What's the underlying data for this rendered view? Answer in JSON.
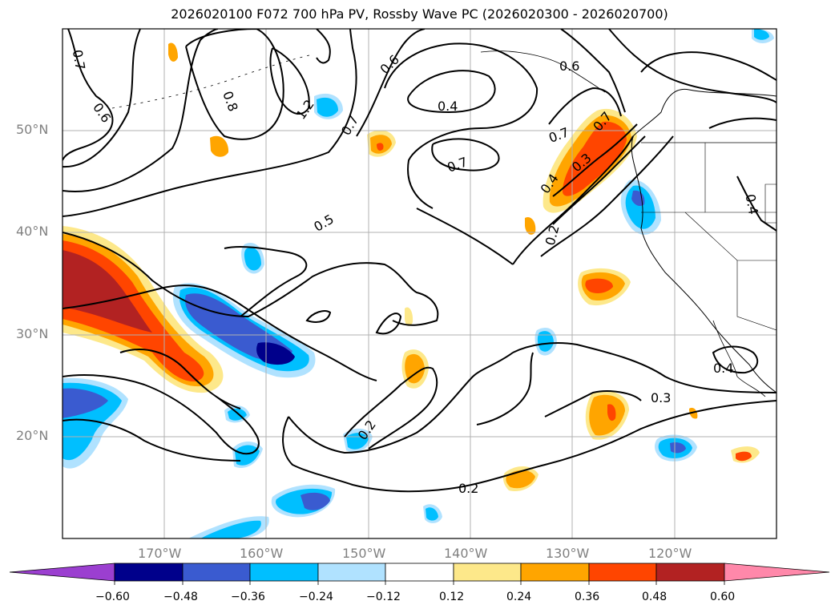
{
  "title": "2026020100 F072 700 hPa PV, Rossby Wave PC (2026020300 - 2026020700)",
  "map": {
    "lat_labels": [
      "50°N",
      "40°N",
      "30°N",
      "20°N"
    ],
    "lon_labels": [
      "170°W",
      "160°W",
      "150°W",
      "140°W",
      "130°W",
      "120°W"
    ],
    "contour_labels": [
      "0.7",
      "0.6",
      "0.8",
      "1.2",
      "0.7",
      "0.6",
      "0.4",
      "0.6",
      "0.7",
      "0.7",
      "0.5",
      "0.7",
      "0.4",
      "0.3",
      "0.2",
      "0.4",
      "0.4",
      "0.3",
      "0.2",
      "0.2"
    ]
  },
  "colorbar": {
    "ticks": [
      "−0.60",
      "−0.48",
      "−0.36",
      "−0.24",
      "−0.12",
      "0.12",
      "0.24",
      "0.36",
      "0.48",
      "0.60"
    ],
    "colors": {
      "neg_extend": "#9b3fd0",
      "neg_060": "#00008b",
      "neg_048": "#3a5bd0",
      "neg_036": "#00bfff",
      "neg_024": "#b0e2ff",
      "neutral": "#ffffff",
      "pos_012": "#fde88a",
      "pos_024": "#ffa500",
      "pos_036": "#ff4500",
      "pos_048": "#b22222",
      "pos_extend": "#ff88aa"
    }
  }
}
